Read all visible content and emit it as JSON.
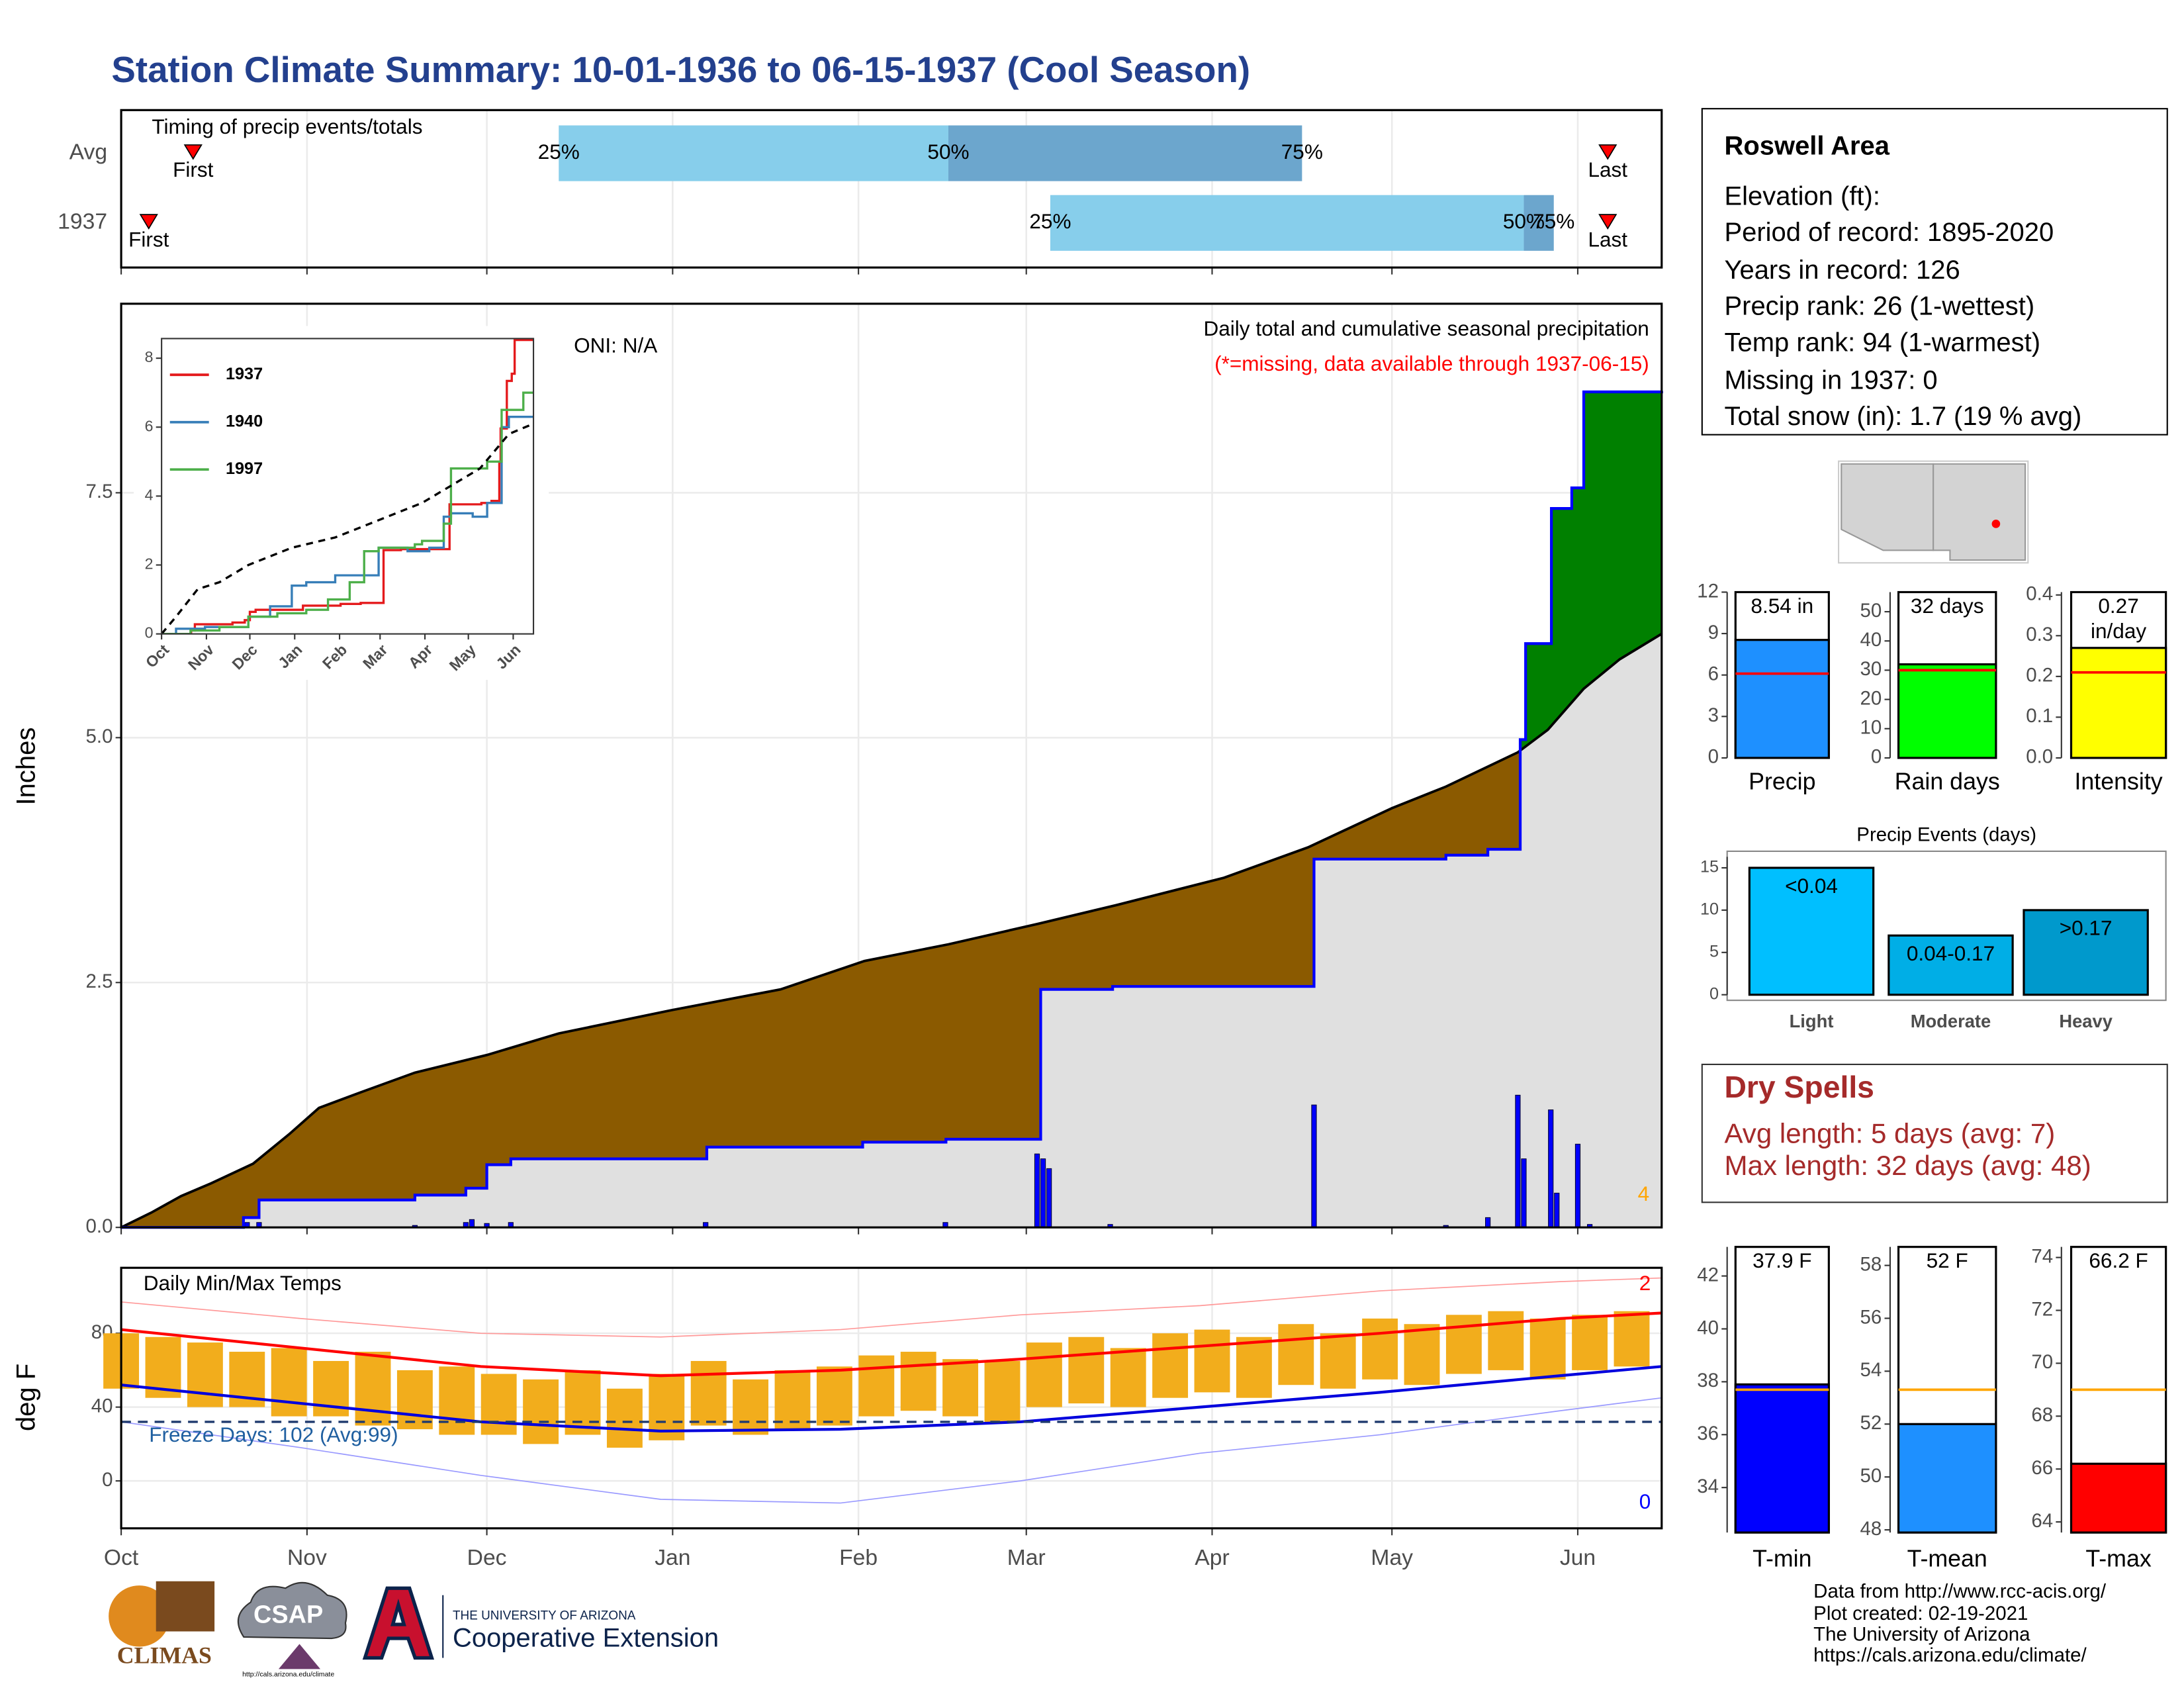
{
  "title": "Station Climate Summary: 10-01-1936 to 06-15-1937 (Cool Season)",
  "station": {
    "title": "Roswell Area",
    "lines": [
      "Elevation (ft):",
      "Period of record: 1895-2020",
      "Years in record: 126",
      "Precip rank: 26 (1-wettest)",
      "Temp rank: 94 (1-warmest)",
      "Missing in 1937: 0",
      "Total snow (in): 1.7 (19 % avg)"
    ]
  },
  "dry_spells": {
    "title": "Dry Spells",
    "lines": [
      "Avg length: 5 days (avg: 7)",
      "Max length: 32 days (avg: 48)"
    ]
  },
  "footer": {
    "credits": [
      "Data from http://www.rcc-acis.org/",
      "Plot created: 02-19-2021",
      "The University of Arizona",
      "https://cals.arizona.edu/climate/"
    ],
    "climas": "CLIMAS",
    "csap": "CSAP",
    "csap_url": "http://cals.arizona.edu/climate",
    "ua": "THE UNIVERSITY OF ARIZONA",
    "coop": "Cooperative Extension"
  },
  "chart_data": [
    {
      "type": "timing",
      "title": "Timing of precip events/totals",
      "categories": [
        "Avg",
        "1937"
      ],
      "first": [
        12,
        4.6
      ],
      "q25": [
        73,
        155
      ],
      "q50": [
        138,
        234
      ],
      "q75": [
        197,
        239
      ],
      "last": [
        248,
        248
      ],
      "first_label": "First",
      "last_label": "Last",
      "quantile_labels": [
        "25%",
        "50%",
        "75%"
      ],
      "colors": [
        "#87ceeb",
        "#6ca6cd"
      ],
      "marker_color": "#ff0000",
      "xlim": [
        0,
        257
      ],
      "xticks": [
        0,
        31,
        61,
        92,
        123,
        151,
        182,
        212,
        243
      ],
      "grid": true
    },
    {
      "type": "area",
      "ylabel": "Inches",
      "oni": "ONI: N/A",
      "subtitle": "Daily total and cumulative seasonal precipitation",
      "note": "(*=missing, data available through 1937-06-15)",
      "annotation": "4",
      "xlim": [
        0,
        257
      ],
      "xticks": [
        0,
        31,
        61,
        92,
        123,
        151,
        182,
        212,
        243
      ],
      "ylim": [
        0,
        9.43
      ],
      "yticks": [
        {
          "value": 0,
          "label": "0.0"
        },
        2.5,
        {
          "value": 5,
          "label": "5.0"
        },
        7.5
      ],
      "grid": true,
      "fill_colors": {
        "below": "#e0e0e0",
        "deficit": "#8b5a00",
        "surplus": "#008000"
      },
      "series": [
        {
          "color": "#000000",
          "x": [
            0,
            5,
            10,
            15,
            22,
            28,
            33,
            40,
            49,
            61,
            73,
            92,
            110,
            124,
            138,
            153,
            166,
            184,
            198,
            212,
            221,
            233,
            238,
            244,
            250,
            257
          ],
          "values": [
            0,
            0.15,
            0.32,
            0.45,
            0.65,
            0.95,
            1.22,
            1.38,
            1.58,
            1.76,
            1.98,
            2.22,
            2.43,
            2.72,
            2.89,
            3.1,
            3.29,
            3.57,
            3.88,
            4.28,
            4.5,
            4.85,
            5.08,
            5.5,
            5.8,
            6.06
          ]
        },
        {
          "color": "#0000ff",
          "step": true,
          "x": [
            0,
            20.4,
            23,
            49,
            57.5,
            61,
            65,
            97.7,
            123.7,
            137.6,
            153.4,
            165.4,
            199,
            221,
            228,
            233.4,
            234.3,
            238.6,
            242,
            244,
            257
          ],
          "values": [
            0,
            0.1,
            0.28,
            0.33,
            0.4,
            0.64,
            0.7,
            0.82,
            0.87,
            0.9,
            2.43,
            2.46,
            3.76,
            3.8,
            3.86,
            4.98,
            5.96,
            7.34,
            7.55,
            8.53,
            8.54
          ]
        }
      ],
      "bars": {
        "color": "#0000ff",
        "x": [
          21,
          23,
          49,
          57.5,
          58.5,
          61,
          65,
          97.5,
          137.5,
          152.8,
          153.8,
          154.8,
          165,
          199,
          221,
          228,
          233,
          234,
          238.5,
          239.5,
          243,
          245
        ],
        "values": [
          0.05,
          0.05,
          0.02,
          0.05,
          0.08,
          0.04,
          0.05,
          0.05,
          0.05,
          0.75,
          0.7,
          0.6,
          0.03,
          1.25,
          0.02,
          0.1,
          1.35,
          0.7,
          1.2,
          0.35,
          0.85,
          0.03
        ]
      }
    },
    {
      "type": "line",
      "xlim": [
        0,
        257
      ],
      "xticks": [
        {
          "value": 0,
          "label": "Oct"
        },
        {
          "value": 31,
          "label": "Nov"
        },
        {
          "value": 61,
          "label": "Dec"
        },
        {
          "value": 92,
          "label": "Jan"
        },
        {
          "value": 123,
          "label": "Feb"
        },
        {
          "value": 151,
          "label": "Mar"
        },
        {
          "value": 182,
          "label": "Apr"
        },
        {
          "value": 212,
          "label": "May"
        },
        {
          "value": 243,
          "label": "Jun"
        }
      ],
      "ylim": [
        0,
        8.57
      ],
      "yticks": [
        0,
        2,
        4,
        6,
        8
      ],
      "series": [
        {
          "name": "1937",
          "color": "#e41a1c",
          "step": true,
          "x": [
            0,
            20.4,
            23,
            49,
            57.5,
            61,
            65,
            97.7,
            123.7,
            137.6,
            153.4,
            165.4,
            199,
            221,
            228,
            233.4,
            234.3,
            238.6,
            242,
            244,
            257
          ],
          "values": [
            0,
            0.1,
            0.28,
            0.33,
            0.4,
            0.64,
            0.7,
            0.82,
            0.87,
            0.9,
            2.43,
            2.46,
            3.76,
            3.8,
            3.86,
            4.98,
            5.96,
            7.34,
            7.55,
            8.53,
            8.54
          ]
        },
        {
          "name": "1940",
          "color": "#377eb8",
          "step": true,
          "x": [
            0,
            10,
            30,
            60,
            75,
            90,
            100,
            120,
            150,
            170,
            185,
            195,
            200,
            215,
            225,
            235,
            240,
            257
          ],
          "values": [
            0,
            0.15,
            0.2,
            0.5,
            0.8,
            1.4,
            1.5,
            1.7,
            2.5,
            2.4,
            2.5,
            3.4,
            3.5,
            3.4,
            3.8,
            6.0,
            6.3,
            6.3
          ]
        },
        {
          "name": "1997",
          "color": "#4daf4a",
          "step": true,
          "x": [
            0,
            20,
            40,
            60,
            80,
            100,
            115,
            130,
            140,
            150,
            160,
            175,
            180,
            195,
            200,
            225,
            232,
            235,
            245,
            250,
            257
          ],
          "values": [
            0,
            0.1,
            0.2,
            0.5,
            0.6,
            0.7,
            1.0,
            1.5,
            2.4,
            2.5,
            2.5,
            2.6,
            2.7,
            3.2,
            4.8,
            5.0,
            5.0,
            6.5,
            6.5,
            7.0,
            7.0
          ]
        },
        {
          "color": "#000000",
          "dash": true,
          "x": [
            0,
            10,
            25,
            40,
            60,
            90,
            120,
            150,
            180,
            200,
            220,
            240,
            257
          ],
          "values": [
            0,
            0.5,
            1.3,
            1.5,
            2.0,
            2.5,
            2.8,
            3.3,
            3.8,
            4.3,
            4.8,
            5.8,
            6.1
          ]
        }
      ]
    },
    {
      "type": "range",
      "title": "Daily Min/Max Temps",
      "ylabel": "deg F",
      "freeze_label": "Freeze Days: 102 (Avg:99)",
      "freeze": 32,
      "high_count": "2",
      "low_count": "0",
      "xlim": [
        0,
        257
      ],
      "xticks": [
        {
          "value": 0,
          "label": "Oct"
        },
        {
          "value": 31,
          "label": "Nov"
        },
        {
          "value": 61,
          "label": "Dec"
        },
        {
          "value": 92,
          "label": "Jan"
        },
        {
          "value": 123,
          "label": "Feb"
        },
        {
          "value": 151,
          "label": "Mar"
        },
        {
          "value": 182,
          "label": "Apr"
        },
        {
          "value": 212,
          "label": "May"
        },
        {
          "value": 243,
          "label": "Jun"
        }
      ],
      "ylim": [
        -25.7,
        115.5
      ],
      "yticks": [
        0,
        40,
        80
      ],
      "grid": true,
      "bars": {
        "color": "#f2ad1c",
        "x": [
          0,
          7,
          14,
          21,
          28,
          35,
          42,
          49,
          56,
          63,
          70,
          77,
          84,
          91,
          98,
          105,
          112,
          119,
          126,
          133,
          140,
          147,
          154,
          161,
          168,
          175,
          182,
          189,
          196,
          203,
          210,
          217,
          224,
          231,
          238,
          245,
          252
        ],
        "low": [
          50,
          45,
          40,
          40,
          35,
          35,
          30,
          28,
          25,
          25,
          20,
          25,
          18,
          22,
          30,
          25,
          28,
          30,
          35,
          38,
          35,
          32,
          40,
          42,
          40,
          45,
          48,
          45,
          52,
          50,
          55,
          52,
          58,
          60,
          55,
          60,
          62
        ],
        "high": [
          80,
          78,
          75,
          70,
          72,
          65,
          70,
          60,
          62,
          58,
          55,
          60,
          50,
          58,
          65,
          55,
          60,
          62,
          68,
          70,
          66,
          65,
          75,
          78,
          72,
          80,
          82,
          78,
          85,
          80,
          88,
          85,
          90,
          92,
          88,
          90,
          92
        ]
      },
      "series": [
        {
          "color": "#ff9999",
          "width": 0.8,
          "x": [
            0,
            30,
            60,
            90,
            120,
            150,
            180,
            210,
            240,
            257
          ],
          "values": [
            97,
            88,
            80,
            78,
            82,
            90,
            95,
            103,
            108,
            110
          ]
        },
        {
          "color": "#9999ff",
          "width": 0.8,
          "x": [
            0,
            30,
            60,
            90,
            120,
            150,
            180,
            210,
            240,
            257
          ],
          "values": [
            32,
            18,
            3,
            -10,
            -12,
            0,
            15,
            25,
            38,
            45
          ]
        },
        {
          "color": "#ff0000",
          "width": 2,
          "x": [
            0,
            30,
            60,
            90,
            120,
            150,
            180,
            210,
            240,
            257
          ],
          "values": [
            82,
            72,
            62,
            57,
            60,
            66,
            73,
            80,
            88,
            91
          ]
        },
        {
          "color": "#0000dd",
          "width": 2,
          "x": [
            0,
            30,
            60,
            90,
            120,
            150,
            180,
            210,
            240,
            257
          ],
          "values": [
            52,
            42,
            32,
            27,
            28,
            32,
            40,
            48,
            57,
            62
          ]
        }
      ]
    },
    {
      "type": "bar",
      "categories": [
        "Precip"
      ],
      "values": [
        8.54
      ],
      "value_labels": [
        "8.54 in"
      ],
      "normal": 6.1,
      "normal_color": "#ff0000",
      "color": "#1e90ff",
      "ylim": [
        0,
        12
      ],
      "yticks": [
        0,
        3,
        6,
        9,
        12
      ]
    },
    {
      "type": "bar",
      "categories": [
        "Rain days"
      ],
      "values": [
        32
      ],
      "value_labels": [
        "32 days"
      ],
      "normal": 30,
      "normal_color": "#ff0000",
      "color": "#00ff00",
      "ylim": [
        0,
        56.7
      ],
      "yticks": [
        0,
        10,
        20,
        30,
        40,
        50
      ]
    },
    {
      "type": "bar",
      "categories": [
        "Intensity"
      ],
      "values": [
        0.27
      ],
      "value_labels": [
        "0.27 in/day"
      ],
      "normal": 0.21,
      "normal_color": "#ff0000",
      "color": "#ffff00",
      "ylim": [
        0,
        0.407
      ],
      "yticks": [
        {
          "value": 0,
          "label": "0.0"
        },
        0.1,
        0.2,
        0.3,
        0.4
      ]
    },
    {
      "type": "bar",
      "title": "Precip Events (days)",
      "categories": [
        "Light",
        "Moderate",
        "Heavy"
      ],
      "values": [
        15,
        7,
        10
      ],
      "value_labels": [
        "<0.04",
        "0.04-0.17",
        ">0.17"
      ],
      "colors": [
        "#00bfff",
        "#00aee6",
        "#0099cc"
      ],
      "ylim": [
        0,
        16.3
      ],
      "yticks": [
        0,
        5,
        10,
        15
      ]
    },
    {
      "type": "bar",
      "categories": [
        "T-min"
      ],
      "values": [
        37.9
      ],
      "value_labels": [
        "37.9 F"
      ],
      "normal": 37.7,
      "normal_color": "#ffa500",
      "color": "#0000ff",
      "ylim": [
        32.3,
        43.1
      ],
      "yticks": [
        34,
        36,
        38,
        40,
        42
      ]
    },
    {
      "type": "bar",
      "categories": [
        "T-mean"
      ],
      "values": [
        52
      ],
      "value_labels": [
        "52 F"
      ],
      "normal": 53.3,
      "normal_color": "#ffa500",
      "color": "#1e90ff",
      "ylim": [
        47.9,
        58.7
      ],
      "yticks": [
        48,
        50,
        52,
        54,
        56,
        58
      ]
    },
    {
      "type": "bar",
      "categories": [
        "T-max"
      ],
      "values": [
        66.2
      ],
      "value_labels": [
        "66.2 F"
      ],
      "normal": 69.0,
      "normal_color": "#ffa500",
      "color": "#ff0000",
      "ylim": [
        63.6,
        74.4
      ],
      "yticks": [
        64,
        66,
        68,
        70,
        72,
        74
      ]
    }
  ]
}
